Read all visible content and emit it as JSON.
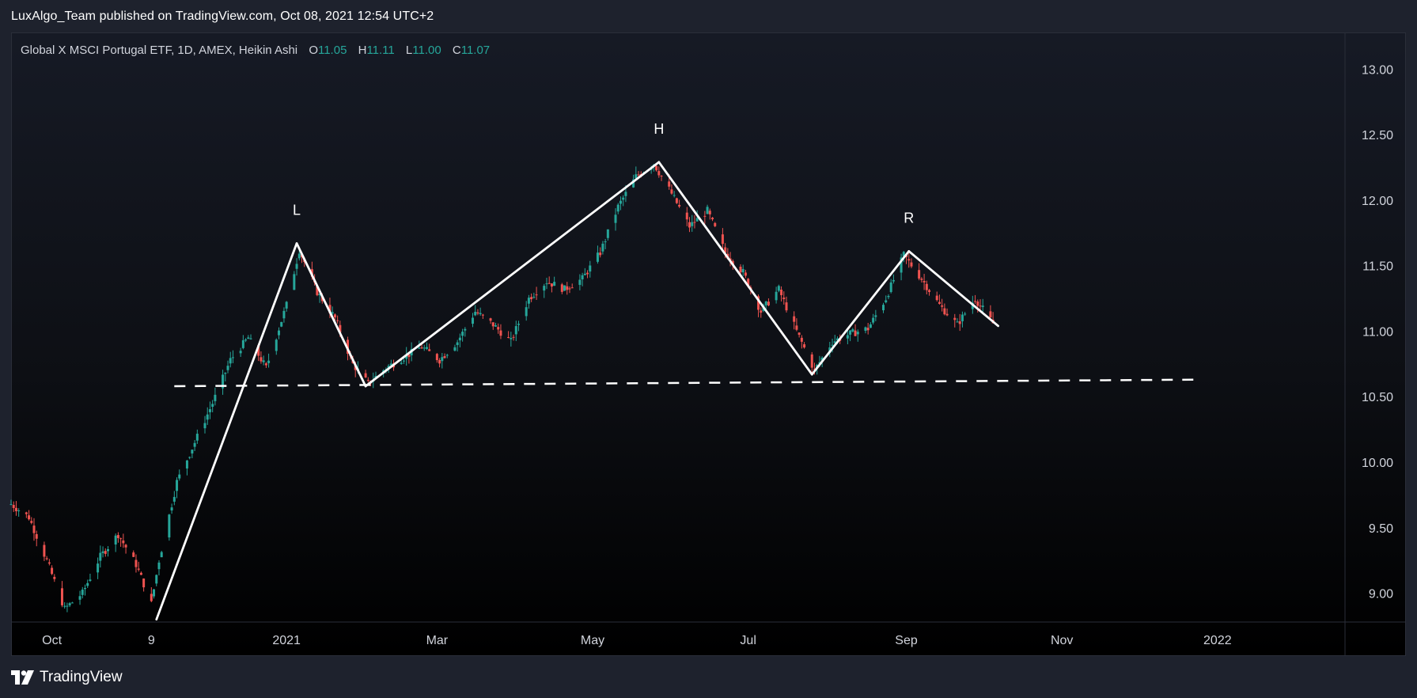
{
  "header": {
    "publisher_line": "LuxAlgo_Team published on TradingView.com, Oct 08, 2021 12:54 UTC+2"
  },
  "legend": {
    "symbol": "Global X MSCI Portugal ETF, 1D, AMEX, Heikin Ashi",
    "open_label": "O",
    "open": "11.05",
    "high_label": "H",
    "high": "11.11",
    "low_label": "L",
    "low": "11.00",
    "close_label": "C",
    "close": "11.07"
  },
  "footer": {
    "brand": "TradingView"
  },
  "colors": {
    "up": "#26a69a",
    "down": "#ef5350",
    "overlay": "#ffffff",
    "axis_text": "#d1d4dc",
    "frame": "#2a2e39"
  },
  "chart_data": {
    "type": "candlestick",
    "style": "Heikin Ashi",
    "ylim": [
      8.78,
      13.28
    ],
    "y_ticks": [
      "13.00",
      "12.50",
      "12.00",
      "11.50",
      "11.00",
      "10.50",
      "10.00",
      "9.50",
      "9.00"
    ],
    "x_ticks": [
      "Oct",
      "9",
      "2021",
      "Mar",
      "May",
      "Jul",
      "Sep",
      "Nov",
      "2022"
    ],
    "x_tick_dates": [
      "2020-10-01",
      "2020-11-09",
      "2021-01-01",
      "2021-03-01",
      "2021-05-01",
      "2021-07-01",
      "2021-09-01",
      "2021-11-01",
      "2022-01-01"
    ],
    "date_range": [
      "2020-09-15",
      "2022-02-20"
    ],
    "pattern": {
      "zigzag": [
        {
          "date": "2020-11-11",
          "value": 8.8
        },
        {
          "date": "2021-01-05",
          "value": 11.67
        },
        {
          "date": "2021-02-01",
          "value": 10.58
        },
        {
          "date": "2021-05-27",
          "value": 12.29
        },
        {
          "date": "2021-07-26",
          "value": 10.67
        },
        {
          "date": "2021-09-02",
          "value": 11.61
        },
        {
          "date": "2021-10-07",
          "value": 11.04
        }
      ],
      "labels": [
        {
          "text": "L",
          "date": "2021-01-05",
          "value": 11.67
        },
        {
          "text": "H",
          "date": "2021-05-27",
          "value": 12.29
        },
        {
          "text": "R",
          "date": "2021-09-02",
          "value": 11.61
        }
      ],
      "neckline": [
        {
          "date": "2020-11-18",
          "value": 10.58
        },
        {
          "date": "2021-12-23",
          "value": 10.63
        }
      ]
    },
    "price_path": [
      [
        "2020-09-15",
        9.68
      ],
      [
        "2020-09-22",
        9.58
      ],
      [
        "2020-09-29",
        9.25
      ],
      [
        "2020-10-06",
        8.88
      ],
      [
        "2020-10-13",
        9.0
      ],
      [
        "2020-10-20",
        9.28
      ],
      [
        "2020-10-27",
        9.45
      ],
      [
        "2020-11-03",
        9.22
      ],
      [
        "2020-11-09",
        8.92
      ],
      [
        "2020-11-12",
        9.25
      ],
      [
        "2020-11-19",
        9.85
      ],
      [
        "2020-11-26",
        10.15
      ],
      [
        "2020-12-03",
        10.45
      ],
      [
        "2020-12-10",
        10.78
      ],
      [
        "2020-12-17",
        10.95
      ],
      [
        "2020-12-24",
        10.72
      ],
      [
        "2021-01-01",
        11.2
      ],
      [
        "2021-01-06",
        11.62
      ],
      [
        "2021-01-13",
        11.3
      ],
      [
        "2021-01-20",
        11.1
      ],
      [
        "2021-01-27",
        10.75
      ],
      [
        "2021-02-02",
        10.6
      ],
      [
        "2021-02-09",
        10.72
      ],
      [
        "2021-02-16",
        10.8
      ],
      [
        "2021-02-23",
        10.88
      ],
      [
        "2021-03-02",
        10.78
      ],
      [
        "2021-03-09",
        10.92
      ],
      [
        "2021-03-16",
        11.15
      ],
      [
        "2021-03-23",
        11.05
      ],
      [
        "2021-03-30",
        10.92
      ],
      [
        "2021-04-06",
        11.25
      ],
      [
        "2021-04-13",
        11.38
      ],
      [
        "2021-04-20",
        11.32
      ],
      [
        "2021-04-27",
        11.4
      ],
      [
        "2021-05-04",
        11.6
      ],
      [
        "2021-05-11",
        11.95
      ],
      [
        "2021-05-18",
        12.18
      ],
      [
        "2021-05-25",
        12.28
      ],
      [
        "2021-06-01",
        12.05
      ],
      [
        "2021-06-08",
        11.8
      ],
      [
        "2021-06-15",
        11.92
      ],
      [
        "2021-06-22",
        11.6
      ],
      [
        "2021-06-29",
        11.45
      ],
      [
        "2021-07-06",
        11.15
      ],
      [
        "2021-07-13",
        11.32
      ],
      [
        "2021-07-20",
        11.0
      ],
      [
        "2021-07-27",
        10.7
      ],
      [
        "2021-08-03",
        10.92
      ],
      [
        "2021-08-10",
        10.98
      ],
      [
        "2021-08-17",
        11.02
      ],
      [
        "2021-08-24",
        11.25
      ],
      [
        "2021-08-31",
        11.58
      ],
      [
        "2021-09-07",
        11.4
      ],
      [
        "2021-09-14",
        11.2
      ],
      [
        "2021-09-21",
        11.05
      ],
      [
        "2021-09-28",
        11.25
      ],
      [
        "2021-10-05",
        11.06
      ]
    ]
  }
}
